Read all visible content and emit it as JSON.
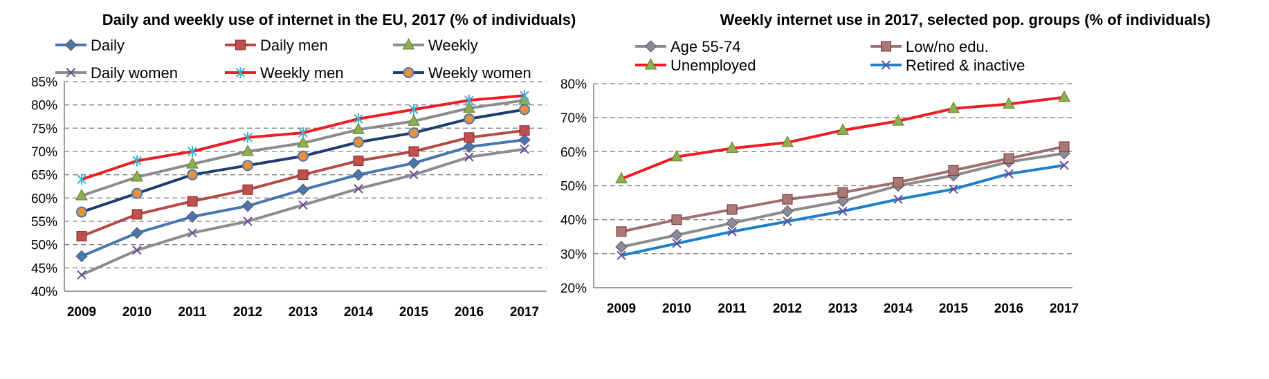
{
  "chart_data": [
    {
      "type": "line",
      "title": "Daily and weekly use of internet in the EU, 2017 (% of individuals)",
      "x": [
        "2009",
        "2010",
        "2011",
        "2012",
        "2013",
        "2014",
        "2015",
        "2016",
        "2017"
      ],
      "ylim": [
        40,
        85
      ],
      "yticks": [
        "40%",
        "45%",
        "50%",
        "55%",
        "60%",
        "65%",
        "70%",
        "75%",
        "80%",
        "85%"
      ],
      "grid": true,
      "legend_position": "top",
      "series": [
        {
          "name": "Daily",
          "color": "#4a76b0",
          "marker": "diamond",
          "values": [
            47.5,
            52.5,
            56,
            58.3,
            61.8,
            65,
            67.5,
            71,
            72.5
          ]
        },
        {
          "name": "Daily men",
          "color": "#b54a48",
          "marker": "square",
          "values": [
            51.8,
            56.5,
            59.3,
            61.8,
            65,
            68,
            70,
            73,
            74.5
          ]
        },
        {
          "name": "Weekly",
          "color": "#8c8c8c",
          "marker": "triangle",
          "values": [
            60.5,
            64.5,
            67.3,
            70,
            71.8,
            74.7,
            76.5,
            79.3,
            81
          ]
        },
        {
          "name": "Daily women",
          "color": "#8c8c8c",
          "marker": "x",
          "values": [
            43.5,
            48.8,
            52.5,
            55,
            58.5,
            62,
            65,
            68.8,
            70.5
          ]
        },
        {
          "name": "Weekly men",
          "color": "#ee1c24",
          "marker": "star",
          "values": [
            64,
            68,
            70,
            73,
            74,
            77,
            79,
            81,
            82
          ]
        },
        {
          "name": "Weekly women",
          "color": "#1f3c6e",
          "marker": "circle",
          "values": [
            57,
            61,
            65,
            67,
            69,
            72,
            74,
            77,
            79
          ]
        }
      ]
    },
    {
      "type": "line",
      "title": "Weekly internet use in 2017, selected pop. groups (% of individuals)",
      "x": [
        "2009",
        "2010",
        "2011",
        "2012",
        "2013",
        "2014",
        "2015",
        "2016",
        "2017"
      ],
      "ylim": [
        20,
        80
      ],
      "yticks": [
        "20%",
        "30%",
        "40%",
        "50%",
        "60%",
        "70%",
        "80%"
      ],
      "grid": true,
      "legend_position": "top",
      "series": [
        {
          "name": "Age 55-74",
          "color": "#8c8c8c",
          "marker": "diamond",
          "values": [
            32,
            35.5,
            39,
            42.5,
            45.5,
            50,
            53,
            57,
            59.5
          ]
        },
        {
          "name": "Low/no edu.",
          "color": "#a07070",
          "marker": "square",
          "values": [
            36.5,
            40,
            43,
            46,
            48,
            51,
            54.5,
            58,
            61.5
          ]
        },
        {
          "name": "Unemployed",
          "color": "#ee1c24",
          "marker": "triangle",
          "values": [
            52,
            58.5,
            61,
            62.7,
            66.3,
            69,
            72.7,
            74,
            76
          ]
        },
        {
          "name": "Retired & inactive",
          "color": "#1f80c8",
          "marker": "x",
          "values": [
            29.5,
            33,
            36.5,
            39.5,
            42.5,
            46,
            49,
            53.5,
            56
          ]
        }
      ]
    }
  ]
}
